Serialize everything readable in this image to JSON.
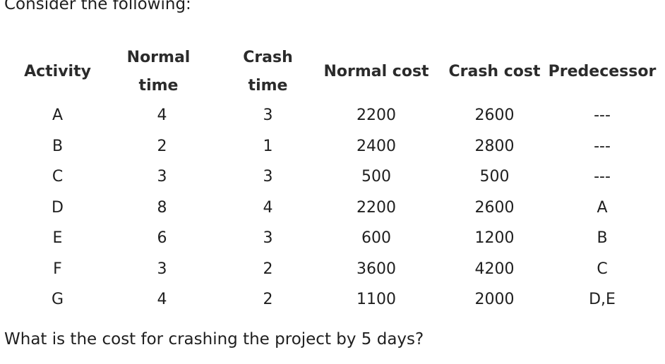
{
  "intro": "Consider the following:",
  "table": {
    "headers": {
      "activity": "Activity",
      "normal_time": "Normal time",
      "crash_time": "Crash time",
      "normal_cost": "Normal cost",
      "crash_cost": "Crash cost",
      "predecessor": "Predecessor"
    },
    "rows": [
      {
        "activity": "A",
        "normal_time": "4",
        "crash_time": "3",
        "normal_cost": "2200",
        "crash_cost": "2600",
        "predecessor": "---"
      },
      {
        "activity": "B",
        "normal_time": "2",
        "crash_time": "1",
        "normal_cost": "2400",
        "crash_cost": "2800",
        "predecessor": "---"
      },
      {
        "activity": "C",
        "normal_time": "3",
        "crash_time": "3",
        "normal_cost": "500",
        "crash_cost": "500",
        "predecessor": "---"
      },
      {
        "activity": "D",
        "normal_time": "8",
        "crash_time": "4",
        "normal_cost": "2200",
        "crash_cost": "2600",
        "predecessor": "A"
      },
      {
        "activity": "E",
        "normal_time": "6",
        "crash_time": "3",
        "normal_cost": "600",
        "crash_cost": "1200",
        "predecessor": "B"
      },
      {
        "activity": "F",
        "normal_time": "3",
        "crash_time": "2",
        "normal_cost": "3600",
        "crash_cost": "4200",
        "predecessor": "C"
      },
      {
        "activity": "G",
        "normal_time": "4",
        "crash_time": "2",
        "normal_cost": "1100",
        "crash_cost": "2000",
        "predecessor": "D,E"
      }
    ]
  },
  "question": "What is the cost for crashing the project by 5 days?"
}
